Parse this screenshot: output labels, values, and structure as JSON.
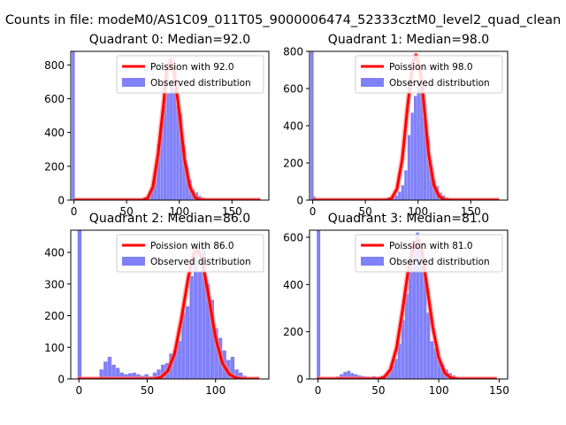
{
  "figure_title": "Counts in file: modeM0/AS1C09_011T05_9000006474_52333cztM0_level2_quad_clean",
  "colors": {
    "fit_line": "#ff0000",
    "fit_line_alpha": "#ff8080",
    "histogram": "#8080f8",
    "axes": "#000000",
    "legend_border": "#cccccc"
  },
  "legend_labels": {
    "fit": "Poission with {median}",
    "observed": "Observed distribution"
  },
  "chart_data": [
    {
      "type": "bar",
      "title": "Quadrant 0: Median=92.0",
      "median": 92.0,
      "xlim": [
        -3,
        185
      ],
      "ylim": [
        0,
        880
      ],
      "xticks": [
        0,
        50,
        100,
        150
      ],
      "yticks": [
        0,
        200,
        400,
        600,
        800
      ],
      "legend_position": "top-right",
      "bins": [
        [
          -2,
          880
        ],
        [
          64,
          5
        ],
        [
          67,
          12
        ],
        [
          70,
          28
        ],
        [
          73,
          75
        ],
        [
          76,
          170
        ],
        [
          79,
          330
        ],
        [
          82,
          460
        ],
        [
          85,
          610
        ],
        [
          88,
          630
        ],
        [
          91,
          700
        ],
        [
          94,
          660
        ],
        [
          97,
          560
        ],
        [
          100,
          510
        ],
        [
          103,
          320
        ],
        [
          106,
          200
        ],
        [
          109,
          120
        ],
        [
          112,
          60
        ],
        [
          115,
          45
        ],
        [
          118,
          25
        ],
        [
          121,
          15
        ],
        [
          124,
          8
        ]
      ],
      "fit": [
        [
          0,
          0
        ],
        [
          65,
          0
        ],
        [
          70,
          12
        ],
        [
          75,
          80
        ],
        [
          80,
          280
        ],
        [
          85,
          560
        ],
        [
          88,
          760
        ],
        [
          92,
          830
        ],
        [
          95,
          760
        ],
        [
          100,
          520
        ],
        [
          105,
          240
        ],
        [
          110,
          80
        ],
        [
          115,
          15
        ],
        [
          120,
          2
        ],
        [
          125,
          0
        ],
        [
          177,
          0
        ]
      ]
    },
    {
      "type": "bar",
      "title": "Quadrant 1: Median=98.0",
      "median": 98.0,
      "xlim": [
        -3,
        185
      ],
      "ylim": [
        0,
        800
      ],
      "xticks": [
        0,
        50,
        100,
        150
      ],
      "yticks": [
        0,
        200,
        400,
        600,
        800
      ],
      "legend_position": "top-right",
      "bins": [
        [
          -2,
          800
        ],
        [
          0,
          20
        ],
        [
          72,
          8
        ],
        [
          75,
          15
        ],
        [
          78,
          25
        ],
        [
          81,
          45
        ],
        [
          84,
          80
        ],
        [
          87,
          160
        ],
        [
          90,
          350
        ],
        [
          93,
          470
        ],
        [
          96,
          560
        ],
        [
          99,
          650
        ],
        [
          102,
          600
        ],
        [
          105,
          440
        ],
        [
          108,
          330
        ],
        [
          111,
          180
        ],
        [
          114,
          110
        ],
        [
          117,
          75
        ],
        [
          120,
          40
        ],
        [
          123,
          25
        ],
        [
          126,
          12
        ],
        [
          129,
          6
        ]
      ],
      "fit": [
        [
          0,
          0
        ],
        [
          70,
          0
        ],
        [
          75,
          10
        ],
        [
          80,
          60
        ],
        [
          85,
          220
        ],
        [
          90,
          500
        ],
        [
          95,
          740
        ],
        [
          98,
          780
        ],
        [
          102,
          700
        ],
        [
          105,
          550
        ],
        [
          110,
          250
        ],
        [
          115,
          80
        ],
        [
          120,
          20
        ],
        [
          125,
          3
        ],
        [
          130,
          0
        ],
        [
          177,
          0
        ]
      ]
    },
    {
      "type": "bar",
      "title": "Quadrant 2: Median=86.0",
      "median": 86.0,
      "xlim": [
        -6,
        139
      ],
      "ylim": [
        0,
        470
      ],
      "xticks": [
        0,
        50,
        100
      ],
      "yticks": [
        0,
        100,
        200,
        300,
        400
      ],
      "legend_position": "top-right",
      "bins": [
        [
          -1,
          470
        ],
        [
          15,
          30
        ],
        [
          18,
          55
        ],
        [
          21,
          70
        ],
        [
          24,
          45
        ],
        [
          27,
          35
        ],
        [
          30,
          20
        ],
        [
          33,
          15
        ],
        [
          36,
          18
        ],
        [
          39,
          20
        ],
        [
          42,
          15
        ],
        [
          45,
          10
        ],
        [
          48,
          15
        ],
        [
          51,
          8
        ],
        [
          54,
          20
        ],
        [
          57,
          30
        ],
        [
          60,
          45
        ],
        [
          63,
          50
        ],
        [
          66,
          80
        ],
        [
          69,
          90
        ],
        [
          72,
          120
        ],
        [
          75,
          210
        ],
        [
          78,
          230
        ],
        [
          81,
          325
        ],
        [
          84,
          420
        ],
        [
          87,
          340
        ],
        [
          90,
          430
        ],
        [
          93,
          300
        ],
        [
          96,
          250
        ],
        [
          99,
          160
        ],
        [
          102,
          130
        ],
        [
          105,
          90
        ],
        [
          108,
          60
        ],
        [
          111,
          70
        ],
        [
          114,
          30
        ],
        [
          117,
          20
        ],
        [
          120,
          10
        ]
      ],
      "fit": [
        [
          -1,
          0
        ],
        [
          55,
          0
        ],
        [
          60,
          5
        ],
        [
          65,
          25
        ],
        [
          70,
          80
        ],
        [
          75,
          190
        ],
        [
          80,
          320
        ],
        [
          84,
          395
        ],
        [
          87,
          410
        ],
        [
          90,
          380
        ],
        [
          95,
          260
        ],
        [
          100,
          130
        ],
        [
          105,
          50
        ],
        [
          110,
          15
        ],
        [
          115,
          3
        ],
        [
          120,
          0
        ],
        [
          132,
          0
        ]
      ]
    },
    {
      "type": "bar",
      "title": "Quadrant 3: Median=81.0",
      "median": 81.0,
      "xlim": [
        -7,
        157
      ],
      "ylim": [
        0,
        630
      ],
      "xticks": [
        0,
        50,
        100,
        150
      ],
      "yticks": [
        0,
        200,
        400,
        600
      ],
      "legend_position": "top-right",
      "bins": [
        [
          -1,
          630
        ],
        [
          15,
          10
        ],
        [
          18,
          20
        ],
        [
          21,
          30
        ],
        [
          24,
          35
        ],
        [
          27,
          25
        ],
        [
          30,
          20
        ],
        [
          33,
          15
        ],
        [
          36,
          12
        ],
        [
          39,
          10
        ],
        [
          42,
          8
        ],
        [
          45,
          12
        ],
        [
          48,
          8
        ],
        [
          51,
          10
        ],
        [
          54,
          15
        ],
        [
          57,
          30
        ],
        [
          60,
          55
        ],
        [
          63,
          85
        ],
        [
          66,
          150
        ],
        [
          69,
          250
        ],
        [
          72,
          360
        ],
        [
          75,
          480
        ],
        [
          78,
          560
        ],
        [
          81,
          620
        ],
        [
          84,
          540
        ],
        [
          87,
          450
        ],
        [
          90,
          280
        ],
        [
          93,
          160
        ],
        [
          96,
          130
        ],
        [
          99,
          80
        ],
        [
          102,
          60
        ],
        [
          105,
          40
        ],
        [
          108,
          25
        ],
        [
          111,
          15
        ],
        [
          114,
          8
        ]
      ],
      "fit": [
        [
          -1,
          0
        ],
        [
          50,
          0
        ],
        [
          55,
          8
        ],
        [
          60,
          40
        ],
        [
          65,
          130
        ],
        [
          70,
          290
        ],
        [
          75,
          470
        ],
        [
          80,
          580
        ],
        [
          83,
          590
        ],
        [
          86,
          540
        ],
        [
          90,
          400
        ],
        [
          95,
          220
        ],
        [
          100,
          90
        ],
        [
          105,
          25
        ],
        [
          110,
          5
        ],
        [
          115,
          0
        ],
        [
          148,
          0
        ]
      ]
    }
  ]
}
